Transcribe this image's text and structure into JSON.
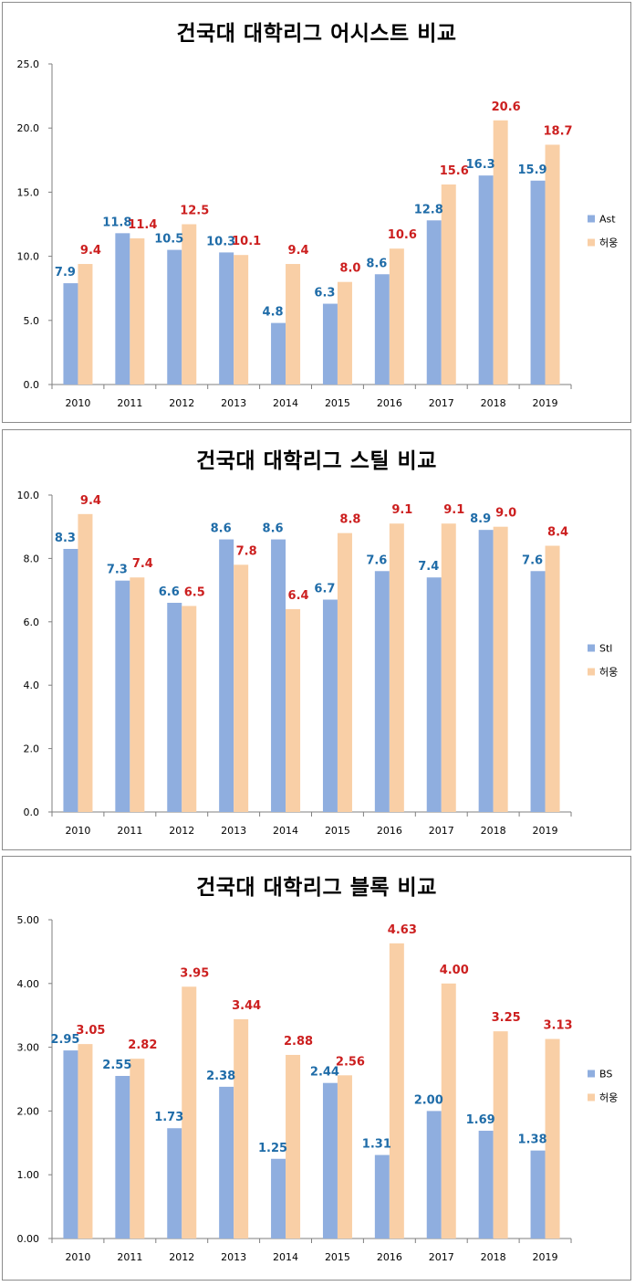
{
  "colors": {
    "series_a": "#8faedf",
    "series_b": "#f9cfa6",
    "label_a": "#1f6ca8",
    "label_b": "#cc1f1f",
    "axis": "#7f7f7f"
  },
  "chart_data": [
    {
      "type": "bar",
      "title": "건국대 대학리그 어시스트 비교",
      "categories": [
        "2010",
        "2011",
        "2012",
        "2013",
        "2014",
        "2015",
        "2016",
        "2017",
        "2018",
        "2019"
      ],
      "series": [
        {
          "name": "Ast",
          "values": [
            7.9,
            11.8,
            10.5,
            10.3,
            4.8,
            6.3,
            8.6,
            12.8,
            16.3,
            15.9
          ]
        },
        {
          "name": "허웅",
          "values": [
            9.4,
            11.4,
            12.5,
            10.1,
            9.4,
            8.0,
            10.6,
            15.6,
            20.6,
            18.7
          ]
        }
      ],
      "ylim": [
        0,
        25
      ],
      "yticks": [
        "0.0",
        "5.0",
        "10.0",
        "15.0",
        "20.0",
        "25.0"
      ],
      "value_labels_a": [
        "7.9",
        "11.8",
        "10.5",
        "10.3",
        "4.8",
        "6.3",
        "8.6",
        "12.8",
        "16.3",
        "15.9"
      ],
      "value_labels_b": [
        "9.4",
        "11.4",
        "12.5",
        "10.1",
        "9.4",
        "8.0",
        "10.6",
        "15.6",
        "20.6",
        "18.7"
      ],
      "legend": "right"
    },
    {
      "type": "bar",
      "title": "건국대 대학리그 스틸 비교",
      "categories": [
        "2010",
        "2011",
        "2012",
        "2013",
        "2014",
        "2015",
        "2016",
        "2017",
        "2018",
        "2019"
      ],
      "series": [
        {
          "name": "Stl",
          "values": [
            8.3,
            7.3,
            6.6,
            8.6,
            8.6,
            6.7,
            7.6,
            7.4,
            8.9,
            7.6
          ]
        },
        {
          "name": "허웅",
          "values": [
            9.4,
            7.4,
            6.5,
            7.8,
            6.4,
            8.8,
            9.1,
            9.1,
            9.0,
            8.4
          ]
        }
      ],
      "ylim": [
        0,
        10
      ],
      "yticks": [
        "0.0",
        "2.0",
        "4.0",
        "6.0",
        "8.0",
        "10.0"
      ],
      "value_labels_a": [
        "8.3",
        "7.3",
        "6.6",
        "8.6",
        "8.6",
        "6.7",
        "7.6",
        "7.4",
        "8.9",
        "7.6"
      ],
      "value_labels_b": [
        "9.4",
        "7.4",
        "6.5",
        "7.8",
        "6.4",
        "8.8",
        "9.1",
        "9.1",
        "9.0",
        "8.4"
      ],
      "legend": "right"
    },
    {
      "type": "bar",
      "title": "건국대 대학리그 블록 비교",
      "categories": [
        "2010",
        "2011",
        "2012",
        "2013",
        "2014",
        "2015",
        "2016",
        "2017",
        "2018",
        "2019"
      ],
      "series": [
        {
          "name": "BS",
          "values": [
            2.95,
            2.55,
            1.73,
            2.38,
            1.25,
            2.44,
            1.31,
            2.0,
            1.69,
            1.38
          ]
        },
        {
          "name": "허웅",
          "values": [
            3.05,
            2.82,
            3.95,
            3.44,
            2.88,
            2.56,
            4.63,
            4.0,
            3.25,
            3.13
          ]
        }
      ],
      "ylim": [
        0,
        5
      ],
      "yticks": [
        "0.00",
        "1.00",
        "2.00",
        "3.00",
        "4.00",
        "5.00"
      ],
      "value_labels_a": [
        "2.95",
        "2.55",
        "1.73",
        "2.38",
        "1.25",
        "2.44",
        "1.31",
        "2.00",
        "1.69",
        "1.38"
      ],
      "value_labels_b": [
        "3.05",
        "2.82",
        "3.95",
        "3.44",
        "2.88",
        "2.56",
        "4.63",
        "4.00",
        "3.25",
        "3.13"
      ],
      "legend": "right"
    }
  ]
}
